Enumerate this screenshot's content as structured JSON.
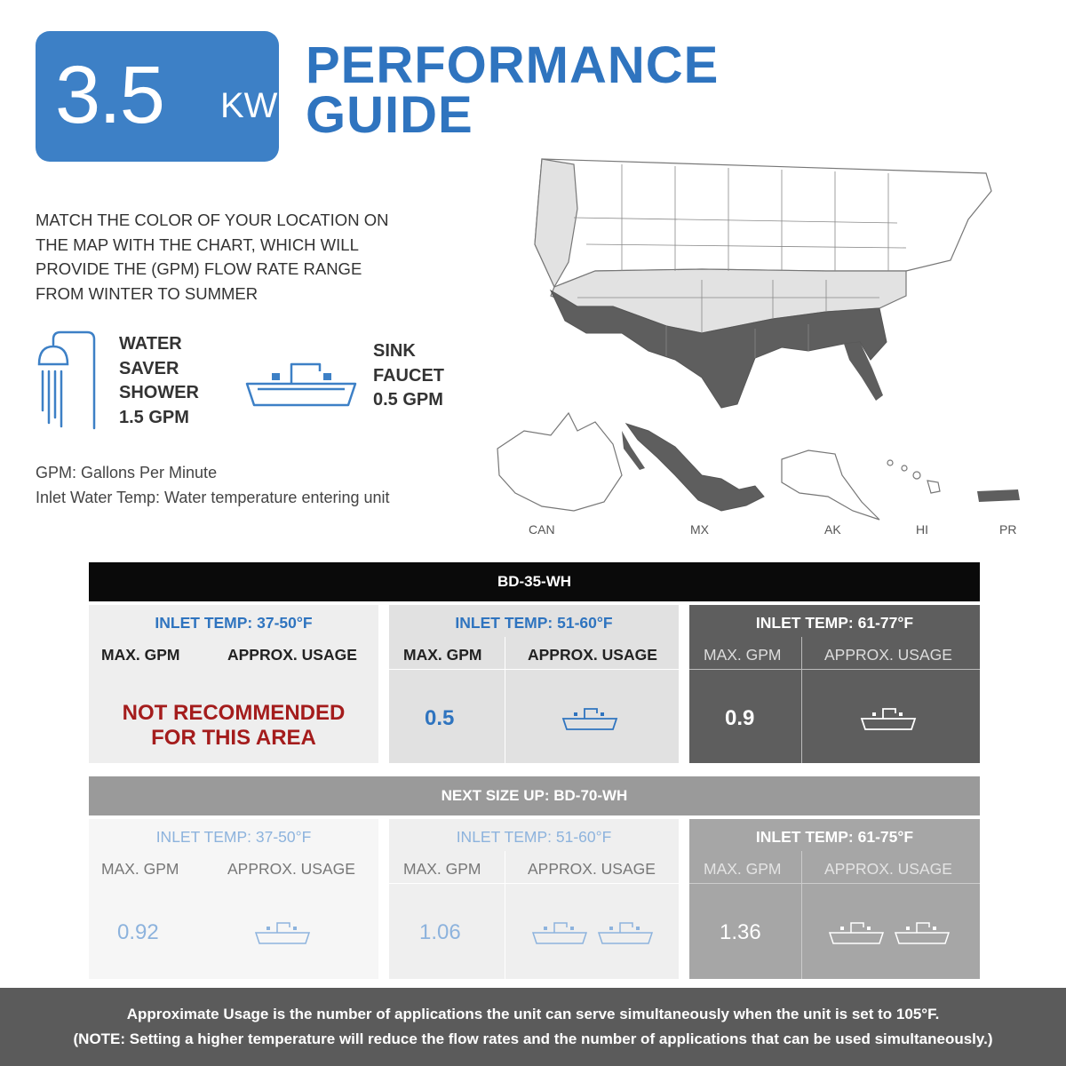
{
  "badge": {
    "value": "3.5",
    "unit": "KW"
  },
  "title": {
    "line1": "PERFORMANCE",
    "line2": "GUIDE"
  },
  "intro": {
    "line1": "MATCH THE COLOR OF YOUR LOCATION ON",
    "line2": "THE MAP WITH THE CHART, WHICH WILL",
    "line3": "PROVIDE THE  (GPM) FLOW RATE RANGE",
    "line4": "FROM WINTER TO SUMMER"
  },
  "shower": {
    "line1": "WATER",
    "line2": "SAVER",
    "line3": "SHOWER",
    "line4": "1.5 GPM"
  },
  "sink": {
    "line1": "SINK",
    "line2": "FAUCET",
    "line3": "0.5 GPM"
  },
  "notes": {
    "gpm": "GPM: Gallons Per Minute",
    "inlet": "Inlet Water Temp: Water temperature entering unit"
  },
  "map_labels": {
    "can": "CAN",
    "mx": "MX",
    "ak": "AK",
    "hi": "HI",
    "pr": "PR"
  },
  "colors": {
    "blue": "#3d80c6",
    "dark": "#5e5e5e",
    "light": "#e1e1e1",
    "red": "#a41c1c"
  },
  "table1": {
    "header": "BD-35-WH",
    "zones": [
      {
        "title": "INLET TEMP: 37-50°F",
        "col1": "MAX. GPM",
        "col2": "APPROX. USAGE",
        "msg1": "NOT RECOMMENDED",
        "msg2": "FOR THIS AREA"
      },
      {
        "title": "INLET TEMP: 51-60°F",
        "col1": "MAX. GPM",
        "col2": "APPROX. USAGE",
        "value": "0.5",
        "sinks": 1
      },
      {
        "title": "INLET TEMP: 61-77°F",
        "col1": "MAX. GPM",
        "col2": "APPROX. USAGE",
        "value": "0.9",
        "sinks": 1
      }
    ]
  },
  "table2": {
    "header": "NEXT SIZE UP: BD-70-WH",
    "zones": [
      {
        "title": "INLET TEMP: 37-50°F",
        "col1": "MAX. GPM",
        "col2": "APPROX. USAGE",
        "value": "0.92",
        "sinks": 1
      },
      {
        "title": "INLET TEMP: 51-60°F",
        "col1": "MAX. GPM",
        "col2": "APPROX. USAGE",
        "value": "1.06",
        "sinks": 2
      },
      {
        "title": "INLET TEMP: 61-75°F",
        "col1": "MAX. GPM",
        "col2": "APPROX. USAGE",
        "value": "1.36",
        "sinks": 2
      }
    ]
  },
  "footer": {
    "line1": "Approximate Usage is the number of applications the unit can serve simultaneously when the unit is set to 105°F.",
    "line2": "(NOTE:  Setting a higher temperature will reduce the flow rates and the number of applications that can be used simultaneously.)"
  }
}
